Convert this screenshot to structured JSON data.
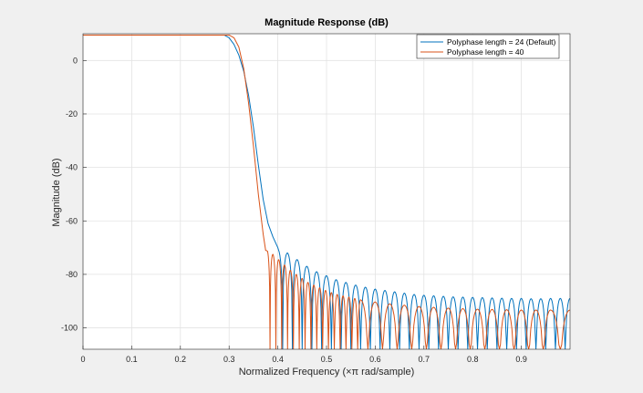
{
  "chart_data": {
    "type": "line",
    "title": "Magnitude Response (dB)",
    "xlabel": "Normalized Frequency  (×π rad/sample)",
    "ylabel": "Magnitude (dB)",
    "xlim": [
      0,
      1
    ],
    "ylim": [
      -108,
      10
    ],
    "xticks": [
      0,
      0.1,
      0.2,
      0.3,
      0.4,
      0.5,
      0.6,
      0.7,
      0.8,
      0.9
    ],
    "xtick_labels": [
      "0",
      "0.1",
      "0.2",
      "0.3",
      "0.4",
      "0.5",
      "0.6",
      "0.7",
      "0.8",
      "0.9"
    ],
    "yticks": [
      0,
      -20,
      -40,
      -60,
      -80,
      -100
    ],
    "ytick_labels": [
      "0",
      "-20",
      "-40",
      "-60",
      "-80",
      "-100"
    ],
    "grid": true,
    "legend_position": "top-right",
    "background": "#f0f0f0",
    "plot_background": "#ffffff",
    "series": [
      {
        "name": "Polyphase length = 24 (Default)",
        "color": "#0072bd",
        "passband_level": 9.5,
        "passband_edge": 0.29,
        "transition": [
          [
            0.29,
            9.5
          ],
          [
            0.3,
            8.5
          ],
          [
            0.31,
            6
          ],
          [
            0.32,
            2
          ],
          [
            0.33,
            -4
          ],
          [
            0.34,
            -13
          ],
          [
            0.35,
            -25
          ],
          [
            0.36,
            -39
          ],
          [
            0.37,
            -52
          ],
          [
            0.38,
            -61
          ],
          [
            0.39,
            -66
          ],
          [
            0.4,
            -70
          ]
        ],
        "sidelobe_peaks": [
          [
            0.4,
            -70.5
          ],
          [
            0.42,
            -72
          ],
          [
            0.44,
            -74.5
          ],
          [
            0.46,
            -77
          ],
          [
            0.48,
            -79
          ],
          [
            0.5,
            -80.5
          ],
          [
            0.52,
            -82
          ],
          [
            0.54,
            -83
          ],
          [
            0.56,
            -84
          ],
          [
            0.58,
            -84.8
          ],
          [
            0.6,
            -85.5
          ],
          [
            0.62,
            -86
          ],
          [
            0.64,
            -86.5
          ],
          [
            0.66,
            -87
          ],
          [
            0.68,
            -87.5
          ],
          [
            0.7,
            -87.8
          ],
          [
            0.72,
            -88
          ],
          [
            0.74,
            -88.2
          ],
          [
            0.76,
            -88.4
          ],
          [
            0.78,
            -88.5
          ],
          [
            0.8,
            -88.6
          ],
          [
            0.82,
            -88.7
          ],
          [
            0.84,
            -88.8
          ],
          [
            0.86,
            -88.9
          ],
          [
            0.88,
            -89
          ],
          [
            0.9,
            -89
          ],
          [
            0.92,
            -89.1
          ],
          [
            0.94,
            -89.1
          ],
          [
            0.96,
            -89
          ],
          [
            0.98,
            -89
          ],
          [
            1.0,
            -89
          ]
        ],
        "null_floor": -108
      },
      {
        "name": "Polyphase length = 40",
        "color": "#d95319",
        "passband_level": 9.5,
        "passband_edge": 0.3,
        "transition": [
          [
            0.3,
            9.5
          ],
          [
            0.31,
            8.5
          ],
          [
            0.32,
            5
          ],
          [
            0.33,
            -3
          ],
          [
            0.34,
            -16
          ],
          [
            0.35,
            -32
          ],
          [
            0.36,
            -50
          ],
          [
            0.37,
            -65
          ],
          [
            0.375,
            -71
          ]
        ],
        "sidelobe_peaks": [
          [
            0.378,
            -71
          ],
          [
            0.39,
            -72.5
          ],
          [
            0.402,
            -74.5
          ],
          [
            0.414,
            -76.5
          ],
          [
            0.426,
            -78.5
          ],
          [
            0.438,
            -80
          ],
          [
            0.45,
            -81.5
          ],
          [
            0.462,
            -83
          ],
          [
            0.474,
            -84
          ],
          [
            0.486,
            -85
          ],
          [
            0.498,
            -86
          ],
          [
            0.51,
            -86.8
          ],
          [
            0.522,
            -87.5
          ],
          [
            0.534,
            -88
          ],
          [
            0.546,
            -88.5
          ],
          [
            0.558,
            -89
          ],
          [
            0.57,
            -89.5
          ],
          [
            0.6,
            -90.3
          ],
          [
            0.63,
            -91
          ],
          [
            0.66,
            -91.5
          ],
          [
            0.69,
            -92
          ],
          [
            0.72,
            -92.3
          ],
          [
            0.75,
            -92.6
          ],
          [
            0.78,
            -92.8
          ],
          [
            0.81,
            -93
          ],
          [
            0.84,
            -93.1
          ],
          [
            0.87,
            -93.2
          ],
          [
            0.9,
            -93.3
          ],
          [
            0.93,
            -93.3
          ],
          [
            0.96,
            -93.3
          ],
          [
            1.0,
            -93.3
          ]
        ],
        "null_floor": -108
      }
    ]
  }
}
